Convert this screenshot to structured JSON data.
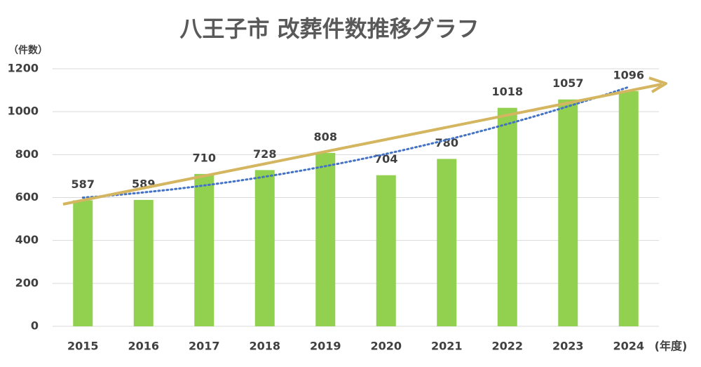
{
  "chart_data": {
    "type": "bar",
    "title": "八王子市 改葬件数推移グラフ",
    "y_unit_label": "（件数）",
    "x_unit_label": "(年度)",
    "categories": [
      "2015",
      "2016",
      "2017",
      "2018",
      "2019",
      "2020",
      "2021",
      "2022",
      "2023",
      "2024"
    ],
    "values": [
      587,
      589,
      710,
      728,
      808,
      704,
      780,
      1018,
      1057,
      1096
    ],
    "color": "#92d050",
    "trendline_color": "#4472c4",
    "ylim": [
      0,
      1200
    ],
    "yticks": [
      0,
      200,
      400,
      600,
      800,
      1000,
      1200
    ],
    "grid": true
  }
}
